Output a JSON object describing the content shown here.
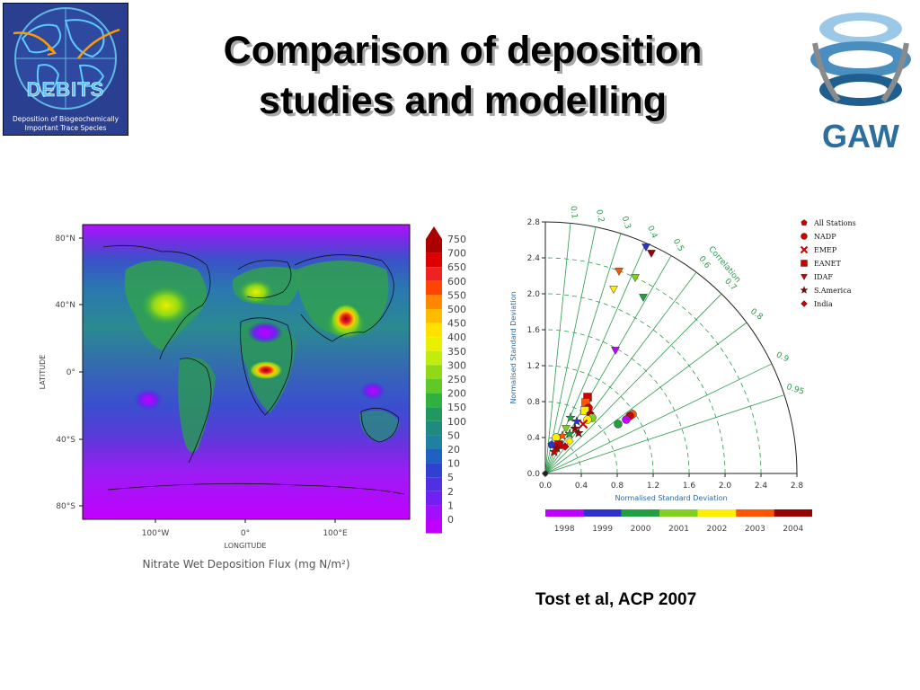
{
  "title": {
    "line1": "Comparison of deposition",
    "line2": "studies and modelling"
  },
  "logos": {
    "debits": {
      "name": "DEBITS",
      "subtitle_line1": "Deposition of Biogeochemically",
      "subtitle_line2": "Important Trace Species"
    },
    "gaw": {
      "name": "GAW"
    }
  },
  "map": {
    "lat_ticks": [
      "80°N",
      "40°N",
      "0°",
      "40°S",
      "80°S"
    ],
    "lon_ticks": [
      "100°W",
      "0°",
      "100°E"
    ],
    "xlabel": "LONGITUDE",
    "ylabel": "LATITUDE",
    "caption": "Nitrate Wet Deposition Flux (mg N/m²)",
    "colorbar_labels": [
      "750",
      "700",
      "650",
      "600",
      "550",
      "500",
      "450",
      "400",
      "350",
      "300",
      "250",
      "200",
      "150",
      "100",
      "50",
      "20",
      "10",
      "5",
      "2",
      "1",
      "0"
    ],
    "colorbar_colors": [
      "#aa0000",
      "#dd0000",
      "#ee2222",
      "#ff4400",
      "#ff8800",
      "#ffbb00",
      "#ffe000",
      "#e8f000",
      "#c0ec10",
      "#90d818",
      "#60c828",
      "#30b040",
      "#209860",
      "#208a80",
      "#2080a0",
      "#2060c0",
      "#3040d0",
      "#5030e0",
      "#7020f0",
      "#a010ff",
      "#c000ff"
    ]
  },
  "chart_data": {
    "type": "scatter",
    "subtype": "taylor-diagram",
    "xlabel": "Normalised Standard Deviation",
    "ylabel": "Normalised Standard Deviation",
    "arc_label": "Correlation",
    "std_ticks": [
      "0.0",
      "0.4",
      "0.8",
      "1.2",
      "1.6",
      "2.0",
      "2.4",
      "2.8"
    ],
    "std_max": 2.8,
    "correlation_ticks": [
      "0.1",
      "0.2",
      "0.3",
      "0.4",
      "0.5",
      "0.6",
      "0.7",
      "0.8",
      "0.9",
      "0.95"
    ],
    "legend": [
      "All Stations",
      "NADP",
      "EMEP",
      "EANET",
      "IDAF",
      "S.America",
      "India"
    ],
    "legend_colors": [
      "#cc0000",
      "#cc0000",
      "#cc0000",
      "#cc0000",
      "#cc0000",
      "#880000",
      "#cc0000"
    ],
    "legend_markers": [
      "pentagon",
      "circle",
      "cross",
      "square",
      "triangle-down",
      "star",
      "diamond"
    ],
    "years": [
      "1998",
      "1999",
      "2000",
      "2001",
      "2002",
      "2003",
      "2004"
    ],
    "year_colors": [
      "#c000ff",
      "#3030d0",
      "#20a040",
      "#80d020",
      "#ffee00",
      "#ff5500",
      "#990000"
    ],
    "points": [
      {
        "x": 1.12,
        "y": 2.52,
        "marker": "triangle-down",
        "color": "#3030d0"
      },
      {
        "x": 1.18,
        "y": 2.45,
        "marker": "triangle-down",
        "color": "#990000"
      },
      {
        "x": 0.82,
        "y": 2.25,
        "marker": "triangle-down",
        "color": "#ff5500"
      },
      {
        "x": 1.0,
        "y": 2.18,
        "marker": "triangle-down",
        "color": "#80d020"
      },
      {
        "x": 0.76,
        "y": 2.05,
        "marker": "triangle-down",
        "color": "#ffee00"
      },
      {
        "x": 1.09,
        "y": 1.96,
        "marker": "triangle-down",
        "color": "#20a040"
      },
      {
        "x": 0.78,
        "y": 1.37,
        "marker": "triangle-down",
        "color": "#c000ff"
      },
      {
        "x": 0.47,
        "y": 0.85,
        "marker": "square",
        "color": "#cc0000"
      },
      {
        "x": 0.45,
        "y": 0.79,
        "marker": "square",
        "color": "#ff5500"
      },
      {
        "x": 0.48,
        "y": 0.73,
        "marker": "circle",
        "color": "#cc0000"
      },
      {
        "x": 0.44,
        "y": 0.7,
        "marker": "square",
        "color": "#ffee00"
      },
      {
        "x": 0.5,
        "y": 0.66,
        "marker": "pentagon",
        "color": "#990000"
      },
      {
        "x": 0.52,
        "y": 0.62,
        "marker": "circle",
        "color": "#80d020"
      },
      {
        "x": 0.47,
        "y": 0.6,
        "marker": "circle",
        "color": "#ffee00"
      },
      {
        "x": 0.97,
        "y": 0.66,
        "marker": "circle",
        "color": "#ff5500"
      },
      {
        "x": 0.94,
        "y": 0.64,
        "marker": "circle",
        "color": "#cc0000"
      },
      {
        "x": 0.9,
        "y": 0.6,
        "marker": "circle",
        "color": "#c000ff"
      },
      {
        "x": 0.81,
        "y": 0.55,
        "marker": "circle",
        "color": "#20a040"
      },
      {
        "x": 0.42,
        "y": 0.55,
        "marker": "cross",
        "color": "#cc0000"
      },
      {
        "x": 0.35,
        "y": 0.58,
        "marker": "star",
        "color": "#3030d0"
      },
      {
        "x": 0.28,
        "y": 0.62,
        "marker": "star",
        "color": "#20a040"
      },
      {
        "x": 0.33,
        "y": 0.5,
        "marker": "star",
        "color": "#880000"
      },
      {
        "x": 0.23,
        "y": 0.5,
        "marker": "triangle-down",
        "color": "#80d020"
      },
      {
        "x": 0.19,
        "y": 0.42,
        "marker": "star",
        "color": "#ff5500"
      },
      {
        "x": 0.27,
        "y": 0.44,
        "marker": "star",
        "color": "#20a040"
      },
      {
        "x": 0.12,
        "y": 0.4,
        "marker": "circle",
        "color": "#ffee00"
      },
      {
        "x": 0.07,
        "y": 0.32,
        "marker": "pentagon",
        "color": "#3030d0"
      },
      {
        "x": 0.15,
        "y": 0.32,
        "marker": "square",
        "color": "#cc0000"
      },
      {
        "x": 0.13,
        "y": 0.28,
        "marker": "star",
        "color": "#990000"
      },
      {
        "x": 0.1,
        "y": 0.24,
        "marker": "star",
        "color": "#cc0000"
      },
      {
        "x": 0.22,
        "y": 0.3,
        "marker": "diamond",
        "color": "#cc0000"
      },
      {
        "x": 0.27,
        "y": 0.36,
        "marker": "diamond",
        "color": "#ffee00"
      },
      {
        "x": 0.37,
        "y": 0.45,
        "marker": "star",
        "color": "#990000"
      }
    ]
  },
  "citation": "Tost et al, ACP 2007"
}
